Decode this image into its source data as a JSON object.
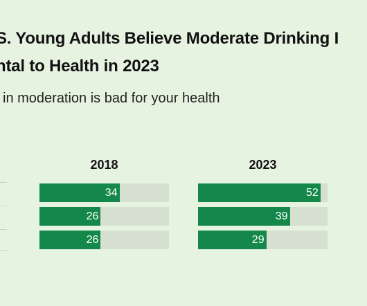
{
  "chart_data": {
    "type": "bar",
    "orientation": "horizontal",
    "title": "S. Young Adults Believe Moderate Drinking I\nntal to Health in 2023",
    "subtitle": "in moderation is bad for your health",
    "categories": [
      "",
      "",
      ""
    ],
    "series": [
      {
        "name": "2018",
        "values": [
          34,
          26,
          26
        ]
      },
      {
        "name": "2023",
        "values": [
          52,
          39,
          29
        ]
      }
    ],
    "xlim": [
      0,
      55
    ],
    "grid": false,
    "colors": {
      "fill": "#13884a",
      "track": "#d5e0d1",
      "background": "#e6f3e1"
    }
  }
}
